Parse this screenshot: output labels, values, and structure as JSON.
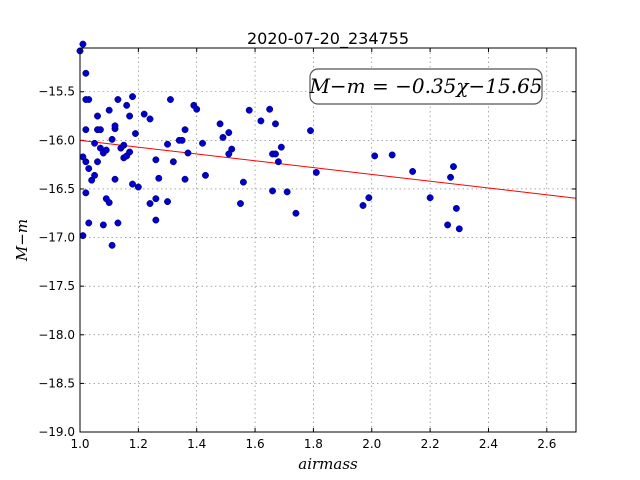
{
  "chart_data": {
    "type": "scatter",
    "title": "2020-07-20_234755",
    "xlabel": "airmass",
    "ylabel": "M−m",
    "xlim": [
      1.0,
      2.7
    ],
    "ylim": [
      -19.0,
      -15.05
    ],
    "y_inverted": true,
    "grid": true,
    "x_ticks": [
      1.0,
      1.2,
      1.4,
      1.6,
      1.8,
      2.0,
      2.2,
      2.4,
      2.6
    ],
    "x_tick_labels": [
      "1.0",
      "1.2",
      "1.4",
      "1.6",
      "1.8",
      "2.0",
      "2.2",
      "2.4",
      "2.6"
    ],
    "y_ticks": [
      -15.5,
      -16.0,
      -16.5,
      -17.0,
      -17.5,
      -18.0,
      -18.5,
      -19.0
    ],
    "y_tick_labels": [
      "−15.5",
      "−16.0",
      "−16.5",
      "−17.0",
      "−17.5",
      "−18.0",
      "−18.5",
      "−19.0"
    ],
    "annotation": "M−m = −0.35χ−15.65",
    "fit": {
      "slope": -0.35,
      "intercept": -15.65,
      "color": "#ff0000"
    },
    "point_color": "#0000cc",
    "points": [
      [
        1.0,
        -15.08
      ],
      [
        1.01,
        -15.01
      ],
      [
        1.02,
        -15.31
      ],
      [
        1.02,
        -15.58
      ],
      [
        1.03,
        -15.58
      ],
      [
        1.02,
        -15.89
      ],
      [
        1.01,
        -16.17
      ],
      [
        1.02,
        -16.22
      ],
      [
        1.03,
        -16.29
      ],
      [
        1.02,
        -16.54
      ],
      [
        1.03,
        -16.85
      ],
      [
        1.01,
        -16.98
      ],
      [
        1.05,
        -16.36
      ],
      [
        1.04,
        -16.41
      ],
      [
        1.05,
        -16.03
      ],
      [
        1.06,
        -16.22
      ],
      [
        1.06,
        -15.75
      ],
      [
        1.06,
        -15.89
      ],
      [
        1.07,
        -15.89
      ],
      [
        1.07,
        -16.08
      ],
      [
        1.08,
        -16.13
      ],
      [
        1.09,
        -16.1
      ],
      [
        1.08,
        -16.87
      ],
      [
        1.09,
        -16.6
      ],
      [
        1.1,
        -16.64
      ],
      [
        1.11,
        -17.08
      ],
      [
        1.1,
        -15.69
      ],
      [
        1.11,
        -15.99
      ],
      [
        1.12,
        -15.88
      ],
      [
        1.12,
        -15.85
      ],
      [
        1.13,
        -15.58
      ],
      [
        1.13,
        -16.85
      ],
      [
        1.12,
        -16.4
      ],
      [
        1.14,
        -16.08
      ],
      [
        1.15,
        -16.05
      ],
      [
        1.15,
        -16.18
      ],
      [
        1.16,
        -15.64
      ],
      [
        1.16,
        -16.16
      ],
      [
        1.17,
        -16.12
      ],
      [
        1.17,
        -15.75
      ],
      [
        1.18,
        -15.55
      ],
      [
        1.18,
        -16.45
      ],
      [
        1.19,
        -15.93
      ],
      [
        1.2,
        -16.48
      ],
      [
        1.22,
        -15.73
      ],
      [
        1.24,
        -15.78
      ],
      [
        1.24,
        -16.65
      ],
      [
        1.26,
        -16.2
      ],
      [
        1.26,
        -16.82
      ],
      [
        1.26,
        -16.6
      ],
      [
        1.27,
        -16.39
      ],
      [
        1.3,
        -16.04
      ],
      [
        1.3,
        -16.63
      ],
      [
        1.31,
        -15.58
      ],
      [
        1.32,
        -16.22
      ],
      [
        1.34,
        -16.0
      ],
      [
        1.35,
        -16.0
      ],
      [
        1.36,
        -15.89
      ],
      [
        1.36,
        -16.4
      ],
      [
        1.37,
        -16.13
      ],
      [
        1.39,
        -15.64
      ],
      [
        1.4,
        -15.68
      ],
      [
        1.42,
        -16.03
      ],
      [
        1.43,
        -16.36
      ],
      [
        1.48,
        -15.83
      ],
      [
        1.49,
        -15.97
      ],
      [
        1.51,
        -15.92
      ],
      [
        1.51,
        -16.14
      ],
      [
        1.52,
        -16.09
      ],
      [
        1.55,
        -16.65
      ],
      [
        1.56,
        -16.43
      ],
      [
        1.58,
        -15.69
      ],
      [
        1.62,
        -15.8
      ],
      [
        1.65,
        -15.68
      ],
      [
        1.66,
        -16.14
      ],
      [
        1.66,
        -16.52
      ],
      [
        1.67,
        -15.83
      ],
      [
        1.67,
        -16.14
      ],
      [
        1.68,
        -16.22
      ],
      [
        1.69,
        -16.07
      ],
      [
        1.71,
        -16.53
      ],
      [
        1.74,
        -16.75
      ],
      [
        1.79,
        -15.9
      ],
      [
        1.81,
        -16.33
      ],
      [
        1.97,
        -16.67
      ],
      [
        1.99,
        -16.59
      ],
      [
        2.01,
        -16.16
      ],
      [
        2.07,
        -16.15
      ],
      [
        2.14,
        -16.32
      ],
      [
        2.2,
        -16.59
      ],
      [
        2.26,
        -16.87
      ],
      [
        2.27,
        -16.38
      ],
      [
        2.28,
        -16.27
      ],
      [
        2.29,
        -16.7
      ],
      [
        2.3,
        -16.91
      ]
    ]
  }
}
